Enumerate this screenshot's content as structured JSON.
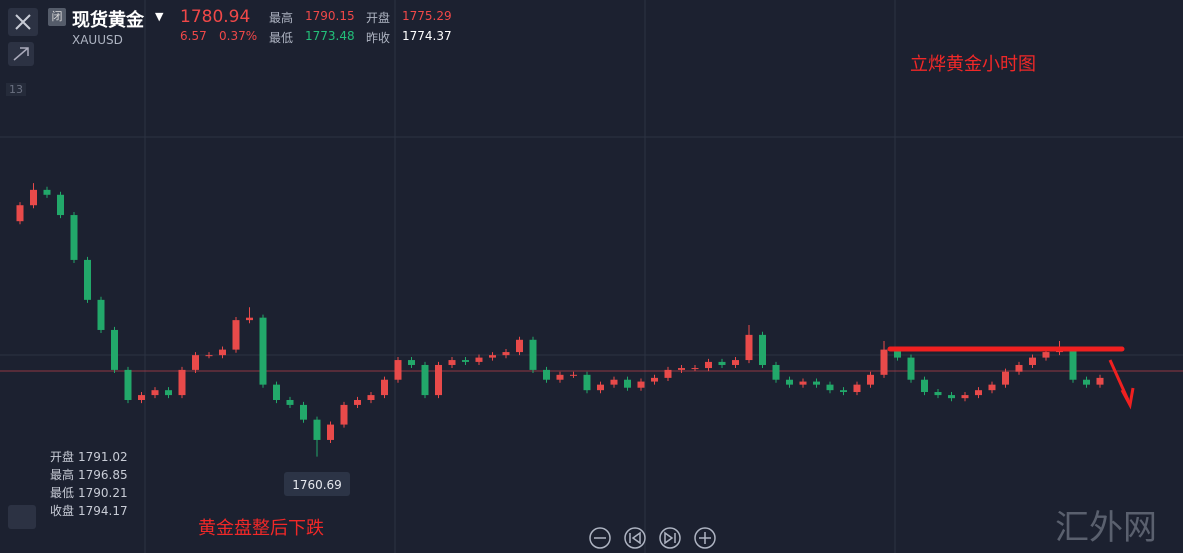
{
  "header": {
    "title": "现货黄金",
    "symbol": "XAUUSD",
    "badge": "闭",
    "price": "1780.94",
    "change": "6.57",
    "change_pct": "0.37%",
    "high_label": "最高",
    "high": "1790.15",
    "open_label": "开盘",
    "open": "1775.29",
    "low_label": "最低",
    "low": "1773.48",
    "prev_close_label": "昨收",
    "prev_close": "1774.37"
  },
  "side_label": "13",
  "info_box": [
    {
      "label": "开盘",
      "value": "1791.02"
    },
    {
      "label": "最高",
      "value": "1796.85"
    },
    {
      "label": "最低",
      "value": "1790.21"
    },
    {
      "label": "收盘",
      "value": "1794.17"
    }
  ],
  "watermark": "汇外网",
  "chart_data": {
    "type": "candlestick",
    "title": "立烨黄金小时图",
    "annotation": "黄金盘整后下跌",
    "ylim": [
      1745,
      1835
    ],
    "up_color": "#e84a4a",
    "down_color": "#22a86a",
    "open": [
      1799.0,
      1801.6,
      1804.1,
      1803.3,
      1800.0,
      1792.7,
      1786.2,
      1781.3,
      1774.8,
      1769.9,
      1770.7,
      1771.5,
      1770.7,
      1774.8,
      1777.2,
      1777.2,
      1778.1,
      1782.9,
      1783.3,
      1772.4,
      1769.9,
      1769.1,
      1766.7,
      1763.4,
      1765.9,
      1769.1,
      1769.9,
      1770.7,
      1773.2,
      1776.4,
      1775.6,
      1770.7,
      1775.6,
      1776.4,
      1776.1,
      1776.8,
      1777.2,
      1777.7,
      1779.7,
      1774.8,
      1773.2,
      1774.0,
      1774.0,
      1771.5,
      1772.4,
      1773.2,
      1771.9,
      1772.9,
      1773.5,
      1774.8,
      1775.1,
      1775.1,
      1776.1,
      1775.6,
      1776.4,
      1780.5,
      1775.6,
      1773.2,
      1772.4,
      1772.9,
      1772.4,
      1771.5,
      1771.2,
      1772.4,
      1774.0,
      1778.1,
      1776.8,
      1773.2,
      1771.2,
      1770.7,
      1770.2,
      1770.7,
      1771.5,
      1772.4,
      1774.5,
      1775.6,
      1776.8,
      1777.7,
      1778.1,
      1773.2,
      1772.4
    ],
    "high": [
      1802.1,
      1805.2,
      1804.6,
      1803.8,
      1800.5,
      1793.2,
      1786.7,
      1781.8,
      1775.3,
      1771.2,
      1772.0,
      1772.0,
      1775.3,
      1777.7,
      1777.7,
      1778.6,
      1783.4,
      1785.0,
      1783.8,
      1772.9,
      1770.4,
      1769.6,
      1767.2,
      1766.4,
      1769.6,
      1770.4,
      1771.2,
      1773.7,
      1776.9,
      1776.9,
      1776.1,
      1776.1,
      1776.9,
      1776.9,
      1777.3,
      1777.7,
      1778.2,
      1780.2,
      1780.2,
      1775.3,
      1774.5,
      1774.5,
      1774.5,
      1772.9,
      1773.7,
      1773.7,
      1773.4,
      1774.0,
      1775.3,
      1775.6,
      1775.6,
      1776.6,
      1776.6,
      1776.9,
      1782.1,
      1781.0,
      1776.1,
      1773.7,
      1773.4,
      1773.4,
      1772.9,
      1772.0,
      1772.9,
      1774.5,
      1779.5,
      1778.6,
      1777.3,
      1773.7,
      1771.7,
      1771.2,
      1771.2,
      1772.0,
      1772.9,
      1775.0,
      1776.1,
      1777.3,
      1778.2,
      1779.5,
      1778.6,
      1773.7,
      1774.0
    ],
    "low": [
      1798.5,
      1801.1,
      1802.8,
      1799.5,
      1792.2,
      1785.7,
      1780.8,
      1774.3,
      1769.4,
      1769.4,
      1770.2,
      1770.2,
      1770.2,
      1774.3,
      1776.7,
      1776.7,
      1777.6,
      1782.4,
      1771.9,
      1769.4,
      1768.6,
      1766.2,
      1760.69,
      1762.9,
      1765.4,
      1768.6,
      1769.4,
      1770.2,
      1772.7,
      1775.1,
      1770.2,
      1770.2,
      1775.1,
      1775.6,
      1775.6,
      1776.3,
      1776.7,
      1777.2,
      1774.3,
      1772.7,
      1772.7,
      1773.5,
      1771.0,
      1771.0,
      1771.9,
      1771.4,
      1771.4,
      1772.4,
      1773.0,
      1774.3,
      1774.6,
      1774.6,
      1775.1,
      1775.1,
      1775.9,
      1775.1,
      1772.7,
      1771.9,
      1771.9,
      1771.9,
      1771.0,
      1770.7,
      1770.7,
      1771.9,
      1773.5,
      1776.3,
      1772.7,
      1770.7,
      1770.2,
      1769.7,
      1769.7,
      1770.2,
      1771.0,
      1771.9,
      1774.0,
      1775.1,
      1776.3,
      1777.2,
      1772.7,
      1771.9,
      1771.9
    ],
    "close": [
      1801.6,
      1804.1,
      1803.3,
      1800.0,
      1792.7,
      1786.2,
      1781.3,
      1774.8,
      1769.9,
      1770.7,
      1771.5,
      1770.7,
      1774.8,
      1777.2,
      1777.2,
      1778.1,
      1782.9,
      1783.3,
      1772.4,
      1769.9,
      1769.1,
      1766.7,
      1763.4,
      1765.9,
      1769.1,
      1769.9,
      1770.7,
      1773.2,
      1776.4,
      1775.6,
      1770.7,
      1775.6,
      1776.4,
      1776.1,
      1776.8,
      1777.2,
      1777.7,
      1779.7,
      1774.8,
      1773.2,
      1774.0,
      1774.0,
      1771.5,
      1772.4,
      1773.2,
      1771.9,
      1772.9,
      1773.5,
      1774.8,
      1775.1,
      1775.1,
      1776.1,
      1775.6,
      1776.4,
      1780.5,
      1775.6,
      1773.2,
      1772.4,
      1772.9,
      1772.4,
      1771.5,
      1771.2,
      1772.4,
      1774.0,
      1778.1,
      1776.8,
      1773.2,
      1771.2,
      1770.7,
      1770.2,
      1770.7,
      1771.5,
      1772.4,
      1774.5,
      1775.6,
      1776.8,
      1777.7,
      1778.1,
      1773.2,
      1772.4,
      1773.5
    ]
  }
}
